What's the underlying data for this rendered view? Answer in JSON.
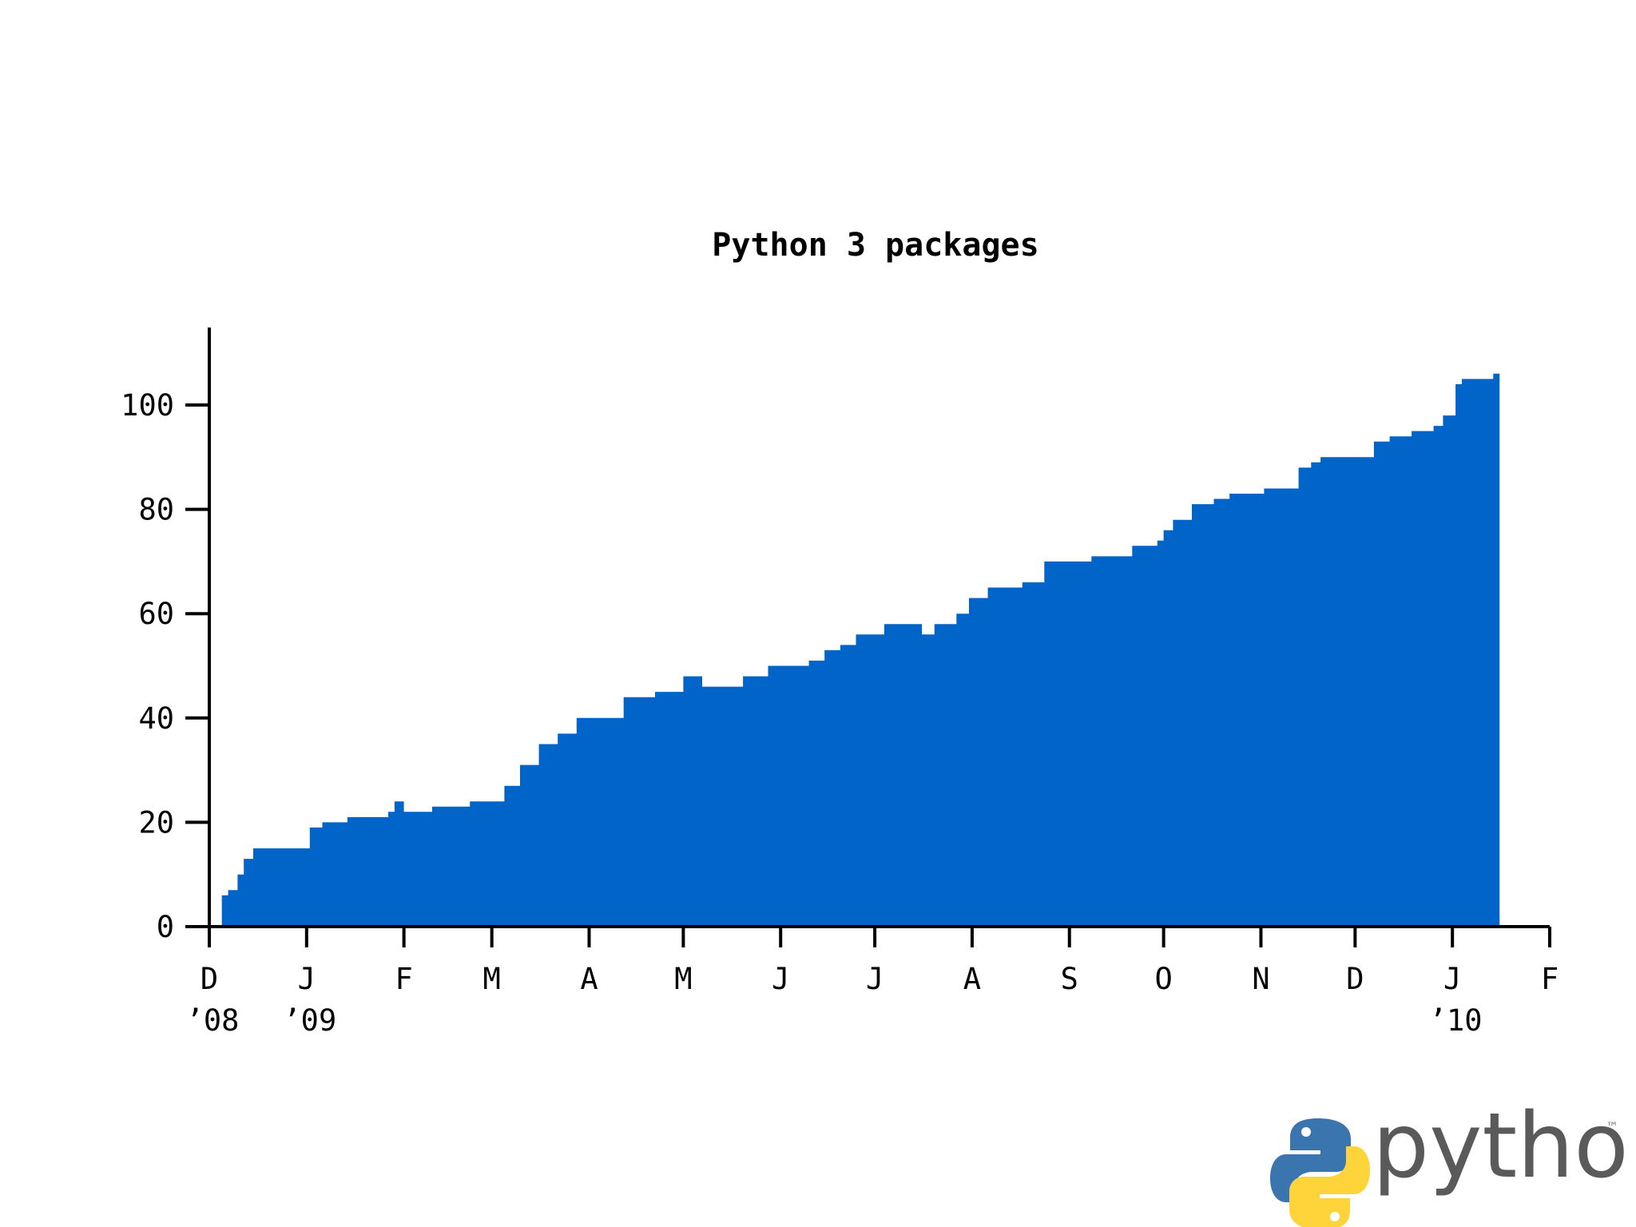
{
  "chart_data": {
    "type": "area",
    "title": "Python 3 packages",
    "xlabel": "",
    "ylabel": "",
    "color": "#0064c8",
    "grid": false,
    "legend": "none",
    "xlim": [
      "2008-12-01",
      "2010-02-01"
    ],
    "ylim": [
      0,
      113
    ],
    "y_ticks": [
      0,
      20,
      40,
      60,
      80,
      100
    ],
    "x_ticks": [
      {
        "date": "2008-12-01",
        "label": "D",
        "year": "’08"
      },
      {
        "date": "2009-01-01",
        "label": "J",
        "year": "’09"
      },
      {
        "date": "2009-02-01",
        "label": "F",
        "year": ""
      },
      {
        "date": "2009-03-01",
        "label": "M",
        "year": ""
      },
      {
        "date": "2009-04-01",
        "label": "A",
        "year": ""
      },
      {
        "date": "2009-05-01",
        "label": "M",
        "year": ""
      },
      {
        "date": "2009-06-01",
        "label": "J",
        "year": ""
      },
      {
        "date": "2009-07-01",
        "label": "J",
        "year": ""
      },
      {
        "date": "2009-08-01",
        "label": "A",
        "year": ""
      },
      {
        "date": "2009-09-01",
        "label": "S",
        "year": ""
      },
      {
        "date": "2009-10-01",
        "label": "O",
        "year": ""
      },
      {
        "date": "2009-11-01",
        "label": "N",
        "year": ""
      },
      {
        "date": "2009-12-01",
        "label": "D",
        "year": ""
      },
      {
        "date": "2010-01-01",
        "label": "J",
        "year": "’10"
      },
      {
        "date": "2010-02-01",
        "label": "F",
        "year": ""
      }
    ],
    "series": [
      {
        "x": [
          "2008-12-05",
          "2008-12-07",
          "2008-12-10",
          "2008-12-12",
          "2008-12-15",
          "2008-12-27",
          "2009-01-02",
          "2009-01-06",
          "2009-01-14",
          "2009-01-20",
          "2009-01-27",
          "2009-01-29",
          "2009-02-01",
          "2009-02-10",
          "2009-02-18",
          "2009-02-22",
          "2009-02-26",
          "2009-03-05",
          "2009-03-10",
          "2009-03-16",
          "2009-03-22",
          "2009-03-28",
          "2009-04-02",
          "2009-04-05",
          "2009-04-12",
          "2009-04-22",
          "2009-04-27",
          "2009-05-01",
          "2009-05-07",
          "2009-05-12",
          "2009-05-20",
          "2009-05-28",
          "2009-06-05",
          "2009-06-10",
          "2009-06-15",
          "2009-06-20",
          "2009-06-25",
          "2009-07-04",
          "2009-07-12",
          "2009-07-16",
          "2009-07-20",
          "2009-07-27",
          "2009-07-31",
          "2009-08-06",
          "2009-08-12",
          "2009-08-17",
          "2009-08-24",
          "2009-09-08",
          "2009-09-12",
          "2009-09-21",
          "2009-09-29",
          "2009-10-01",
          "2009-10-04",
          "2009-10-10",
          "2009-10-17",
          "2009-10-22",
          "2009-10-28",
          "2009-11-02",
          "2009-11-13",
          "2009-11-17",
          "2009-11-20",
          "2009-11-28",
          "2009-12-07",
          "2009-12-12",
          "2009-12-16",
          "2009-12-19",
          "2009-12-22",
          "2009-12-26",
          "2009-12-29",
          "2010-01-02",
          "2010-01-04",
          "2010-01-14"
        ],
        "y": [
          6,
          7,
          10,
          13,
          15,
          15,
          19,
          20,
          21,
          21,
          22,
          24,
          22,
          23,
          23,
          24,
          24,
          27,
          31,
          35,
          37,
          40,
          40,
          40,
          44,
          45,
          45,
          48,
          46,
          46,
          48,
          50,
          50,
          51,
          53,
          54,
          56,
          58,
          58,
          56,
          58,
          60,
          63,
          65,
          65,
          66,
          70,
          71,
          71,
          73,
          74,
          76,
          78,
          81,
          82,
          83,
          83,
          84,
          88,
          89,
          90,
          90,
          93,
          94,
          94,
          95,
          95,
          96,
          98,
          104,
          105,
          106
        ]
      }
    ]
  },
  "brand": {
    "logo_name": "python-logo-icon",
    "wordmark": "python",
    "tm": "™",
    "blue": "#3a75b0",
    "yellow": "#ffd43b"
  }
}
